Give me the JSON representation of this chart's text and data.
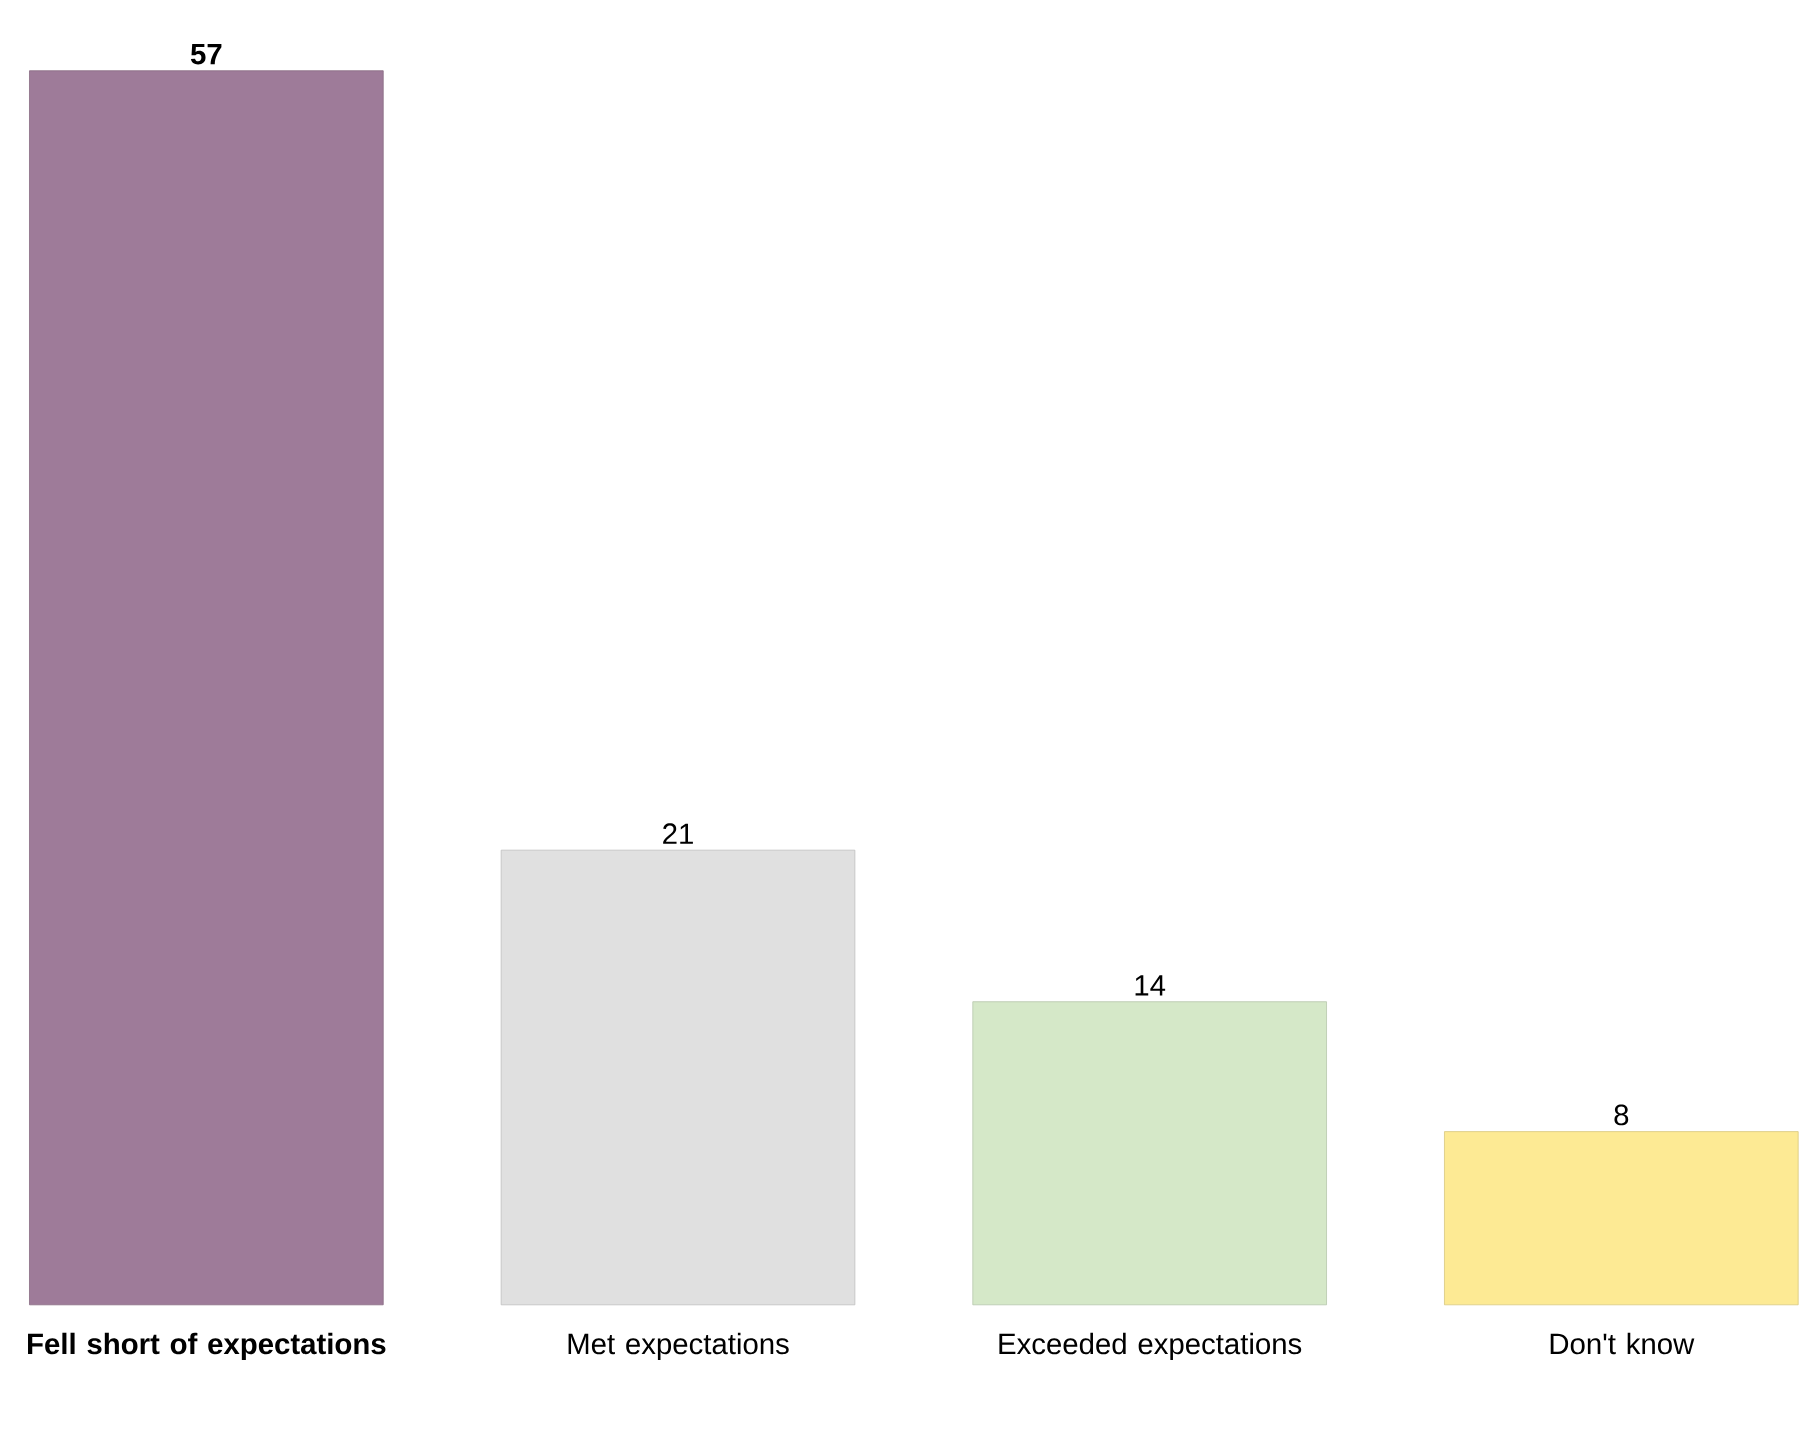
{
  "chart_data": {
    "type": "bar",
    "categories": [
      "**Fell short of expectations**",
      "Met expectations",
      "Exceeded expectations",
      "Don't know"
    ],
    "values": [
      57,
      21,
      14,
      8
    ],
    "colors": [
      "#9e7b99",
      "#e0e0e0",
      "#d5e8c8",
      "#fdea94"
    ],
    "value_labels": [
      "**57**",
      "21",
      "14",
      "8"
    ]
  }
}
